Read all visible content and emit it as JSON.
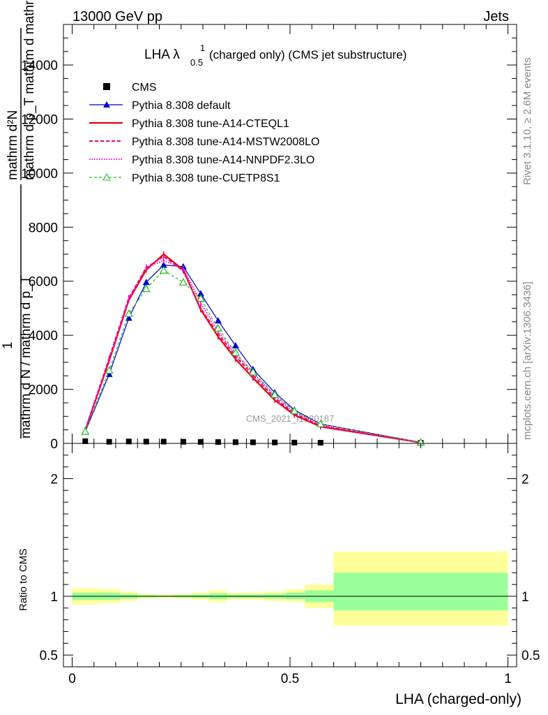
{
  "header": {
    "left": "13000 GeV pp",
    "right": "Jets"
  },
  "side_labels": {
    "rivet": "Rivet 3.1.10, ≥ 2.6M events",
    "mcplots": "mcplots.cern.ch [arXiv:1306.3436]"
  },
  "chart_data": {
    "type": "line",
    "title_main": "LHA λ",
    "title_sup": "1",
    "title_sub": "0.5",
    "title_rest": "(charged only) (CMS jet substructure)",
    "watermark": "CMS_2021_I1920187",
    "xlabel": "LHA (charged-only)",
    "ylabel_top": {
      "frac_num": "mathrm d²N",
      "frac_den": "mathrm d p_T mathrm d mathrm d lambda",
      "lead_num": "1",
      "lead_den": "mathrm d N / mathrm d p_T"
    },
    "ratio_ylabel": "Ratio to CMS",
    "xlim": [
      -0.02,
      1.02
    ],
    "ylim_main": [
      0,
      15500
    ],
    "ylim_ratio": [
      0.4,
      2.3
    ],
    "main_yticks": [
      0,
      2000,
      4000,
      6000,
      8000,
      10000,
      12000,
      14000
    ],
    "main_ytick_labels": [
      "0",
      "2000",
      "4000",
      "6000",
      "8000",
      "10000",
      "12000",
      "14000"
    ],
    "ratio_ytick_labels": [
      {
        "v": 0.5,
        "label": "0.5"
      },
      {
        "v": 1,
        "label": "1"
      },
      {
        "v": 2,
        "label": "2"
      }
    ],
    "xticks": [
      {
        "v": 0,
        "label": "0"
      },
      {
        "v": 0.5,
        "label": "0.5"
      },
      {
        "v": 1,
        "label": "1"
      }
    ],
    "bin_edges": [
      0.0,
      0.06,
      0.11,
      0.15,
      0.19,
      0.235,
      0.275,
      0.315,
      0.355,
      0.395,
      0.44,
      0.49,
      0.535,
      0.6,
      1.0
    ],
    "x": [
      0.03,
      0.085,
      0.13,
      0.17,
      0.21,
      0.255,
      0.295,
      0.335,
      0.375,
      0.415,
      0.465,
      0.51,
      0.57,
      0.8
    ],
    "cms": [
      80,
      60,
      70,
      65,
      65,
      60,
      55,
      50,
      45,
      40,
      35,
      30,
      25,
      20
    ],
    "band_yellow": [
      [
        0.93,
        1.07
      ],
      [
        0.94,
        1.06
      ],
      [
        0.96,
        1.04
      ],
      [
        0.98,
        1.02
      ],
      [
        0.985,
        1.015
      ],
      [
        0.98,
        1.02
      ],
      [
        0.97,
        1.03
      ],
      [
        0.95,
        1.05
      ],
      [
        0.97,
        1.03
      ],
      [
        0.97,
        1.03
      ],
      [
        0.96,
        1.04
      ],
      [
        0.95,
        1.06
      ],
      [
        0.9,
        1.1
      ],
      [
        0.75,
        1.38
      ]
    ],
    "band_green": [
      [
        0.97,
        1.03
      ],
      [
        0.97,
        1.03
      ],
      [
        0.98,
        1.02
      ],
      [
        0.99,
        1.01
      ],
      [
        0.993,
        1.007
      ],
      [
        0.99,
        1.01
      ],
      [
        0.985,
        1.015
      ],
      [
        0.975,
        1.025
      ],
      [
        0.985,
        1.015
      ],
      [
        0.985,
        1.015
      ],
      [
        0.98,
        1.02
      ],
      [
        0.975,
        1.03
      ],
      [
        0.95,
        1.05
      ],
      [
        0.88,
        1.2
      ]
    ],
    "series": [
      {
        "name": "CMS",
        "key": "cms",
        "color": "#000000",
        "style": "marker-square"
      },
      {
        "name": "Pythia 8.308 default",
        "color": "#0000cc",
        "dash": "",
        "width": 1.2,
        "marker": "triangle-filled",
        "values": [
          430,
          2560,
          4640,
          5960,
          6600,
          6540,
          5540,
          4540,
          3620,
          2740,
          1880,
          1240,
          720,
          40
        ]
      },
      {
        "name": "Pythia 8.308 tune-A14-CTEQL1",
        "color": "#ee0000",
        "dash": "",
        "width": 2.2,
        "marker": "",
        "values": [
          480,
          3060,
          5300,
          6420,
          7000,
          6420,
          4950,
          3950,
          3120,
          2420,
          1600,
          1050,
          620,
          30
        ]
      },
      {
        "name": "Pythia 8.308 tune-A14-MSTW2008LO",
        "color": "#ee0077",
        "dash": "5,3",
        "width": 2.0,
        "marker": "",
        "values": [
          500,
          3150,
          5380,
          6500,
          6920,
          6380,
          5000,
          4050,
          3220,
          2520,
          1680,
          1100,
          650,
          30
        ]
      },
      {
        "name": "Pythia 8.308 tune-A14-NNPDF2.3LO",
        "color": "#ee00cc",
        "dash": "1.5,2",
        "width": 2.0,
        "marker": "",
        "values": [
          490,
          3100,
          5320,
          6520,
          6760,
          6480,
          5200,
          4150,
          3300,
          2600,
          1760,
          1160,
          680,
          35
        ]
      },
      {
        "name": "Pythia 8.308 tune-CUETP8S1",
        "color": "#22bb22",
        "dash": "4,3",
        "width": 1.2,
        "marker": "triangle-open",
        "values": [
          440,
          2700,
          4800,
          5720,
          6400,
          5960,
          5360,
          4260,
          3360,
          2640,
          1800,
          1200,
          720,
          40
        ]
      }
    ]
  }
}
